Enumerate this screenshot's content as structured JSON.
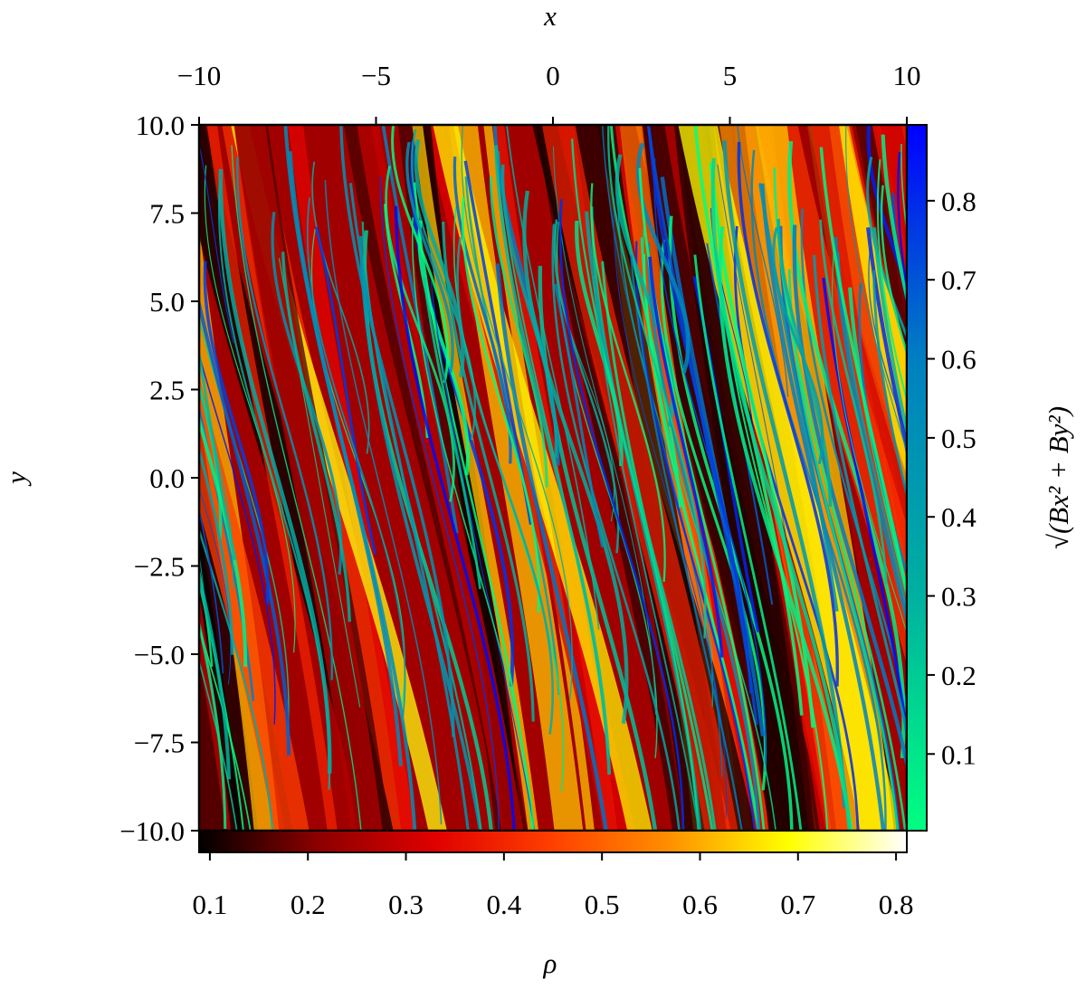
{
  "chart_data": {
    "type": "heatmap",
    "xlabel": "x",
    "ylabel": "y",
    "xlim": [
      -10,
      10
    ],
    "xticks": [
      {
        "value": -10,
        "label": "−10"
      },
      {
        "value": -5,
        "label": "−5"
      },
      0,
      5,
      10
    ],
    "ylim": [
      -10,
      10
    ],
    "yticks": [
      {
        "value": 10,
        "label": "10.0"
      },
      {
        "value": 7.5,
        "label": "7.5"
      },
      {
        "value": 5,
        "label": "5.0"
      },
      {
        "value": 2.5,
        "label": "2.5"
      },
      {
        "value": 0,
        "label": "0.0"
      },
      {
        "value": -2.5,
        "label": "−2.5"
      },
      {
        "value": -5,
        "label": "−5.0"
      },
      {
        "value": -7.5,
        "label": "−7.5"
      },
      {
        "value": -10,
        "label": "−10.0"
      }
    ],
    "colorbars": [
      {
        "label": "ρ",
        "lim": [
          0.089,
          0.811
        ],
        "ticks": [
          0.1,
          0.2,
          0.3,
          0.4,
          0.5,
          0.6,
          0.7,
          0.8
        ],
        "colormap": [
          "#000000",
          "#8b0000",
          "#e00000",
          "#ff4000",
          "#ff9000",
          "#ffff00",
          "#ffffff"
        ]
      },
      {
        "label": "√(Bx² + By²)",
        "lim": [
          0.003,
          0.896
        ],
        "ticks": [
          0.1,
          0.2,
          0.3,
          0.4,
          0.5,
          0.6,
          0.7,
          0.8
        ],
        "colormap": [
          "#00ff80",
          "#00b0a0",
          "#0080c0",
          "#0000ff"
        ]
      }
    ]
  }
}
